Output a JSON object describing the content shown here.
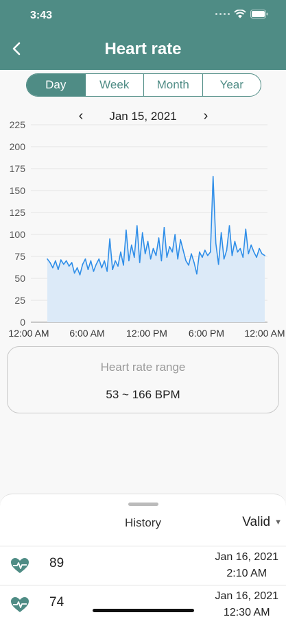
{
  "status": {
    "time": "3:43"
  },
  "header": {
    "title": "Heart rate"
  },
  "tabs": [
    {
      "label": "Day",
      "active": true
    },
    {
      "label": "Week",
      "active": false
    },
    {
      "label": "Month",
      "active": false
    },
    {
      "label": "Year",
      "active": false
    }
  ],
  "date_nav": {
    "prev": "‹",
    "date": "Jan 15, 2021",
    "next": "›"
  },
  "range": {
    "label": "Heart rate range",
    "value": "53 ~ 166 BPM"
  },
  "history": {
    "label": "History",
    "filter": "Valid"
  },
  "history_rows": [
    {
      "bpm": "89",
      "date": "Jan 16, 2021",
      "time": "2:10 AM"
    },
    {
      "bpm": "74",
      "date": "Jan 16, 2021",
      "time": "12:30 AM"
    }
  ],
  "colors": {
    "brand": "#4f8c85",
    "line": "#2f8ee8",
    "fill": "#dceaf8"
  },
  "chart_data": {
    "type": "area",
    "title": "",
    "xlabel": "",
    "ylabel": "",
    "ylim": [
      0,
      225
    ],
    "yticks": [
      0,
      25,
      50,
      75,
      100,
      125,
      150,
      175,
      200,
      225
    ],
    "xlim": [
      0,
      24
    ],
    "xtick_labels": [
      "12:00 AM",
      "6:00 AM",
      "12:00 PM",
      "6:00 PM",
      "12:00 AM"
    ],
    "grid": true,
    "series": [
      {
        "x": [
          0,
          0.3,
          0.6,
          0.9,
          1.2,
          1.5,
          1.8,
          2.1,
          2.4,
          2.7,
          3.0,
          3.3,
          3.6,
          3.9,
          4.2,
          4.5,
          4.8,
          5.1,
          5.4,
          5.7,
          6.0,
          6.3,
          6.6,
          6.9,
          7.2,
          7.5,
          7.8,
          8.1,
          8.4,
          8.7,
          9.0,
          9.3,
          9.6,
          9.9,
          10.2,
          10.5,
          10.8,
          11.1,
          11.4,
          11.7,
          12.0,
          12.3,
          12.6,
          12.9,
          13.2,
          13.5,
          13.8,
          14.1,
          14.4,
          14.7,
          15.0,
          15.3,
          15.6,
          15.9,
          16.2,
          16.5,
          16.8,
          17.1,
          17.4,
          17.7,
          18.0,
          18.3,
          18.6,
          18.9,
          19.2,
          19.5,
          19.8,
          20.1,
          20.4,
          20.7,
          21.0,
          21.3,
          21.6,
          21.9,
          22.2,
          22.5,
          22.8,
          23.1,
          23.4,
          23.7,
          24.0
        ],
        "values": [
          72,
          68,
          62,
          70,
          60,
          71,
          66,
          70,
          64,
          68,
          56,
          62,
          54,
          66,
          72,
          60,
          70,
          58,
          66,
          72,
          62,
          70,
          58,
          95,
          60,
          70,
          64,
          80,
          65,
          105,
          70,
          88,
          74,
          110,
          68,
          102,
          78,
          92,
          72,
          84,
          76,
          96,
          70,
          108,
          74,
          86,
          80,
          100,
          72,
          94,
          82,
          70,
          65,
          78,
          68,
          55,
          80,
          74,
          82,
          76,
          80,
          166,
          90,
          66,
          102,
          72,
          82,
          110,
          76,
          92,
          80,
          84,
          74,
          106,
          78,
          88,
          80,
          74,
          84,
          78,
          76
        ]
      }
    ]
  }
}
